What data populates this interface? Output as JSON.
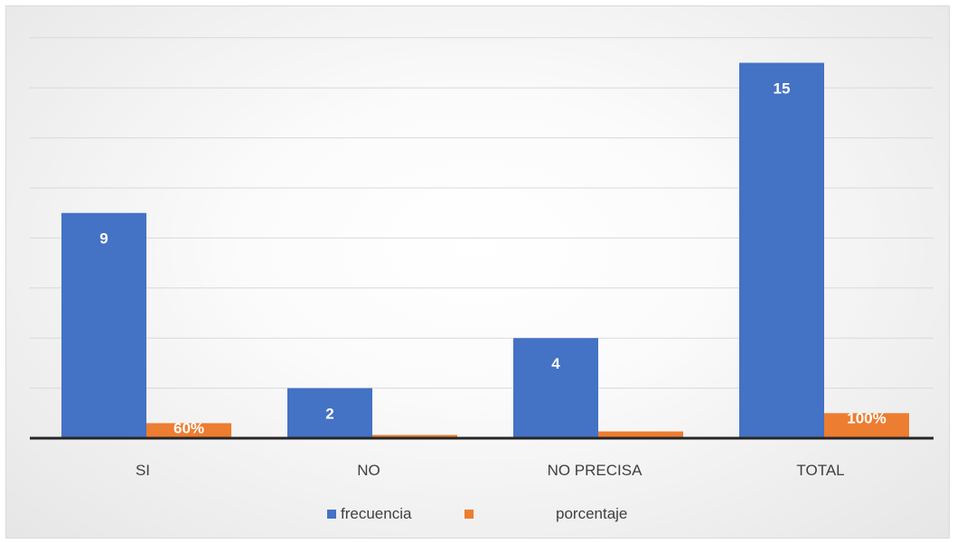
{
  "chart_data": {
    "type": "bar",
    "categories": [
      "SI",
      "NO",
      "NO PRECISA",
      "TOTAL"
    ],
    "series": [
      {
        "name": "frecuencia",
        "values": [
          9,
          2,
          4,
          15
        ],
        "labels": [
          "9",
          "2",
          "4",
          "15"
        ],
        "color": "#4472c4"
      },
      {
        "name": "porcentaje",
        "values": [
          0.6,
          0.13,
          0.27,
          1.0
        ],
        "labels": [
          "60%",
          "",
          "",
          "100%"
        ],
        "color": "#ed7d31"
      }
    ],
    "ylim": [
      0,
      16
    ],
    "grid": true,
    "legend_position": "bottom",
    "title": "",
    "xlabel": "",
    "ylabel": ""
  },
  "legend": {
    "frecuencia": "frecuencia",
    "porcentaje": "porcentaje"
  }
}
